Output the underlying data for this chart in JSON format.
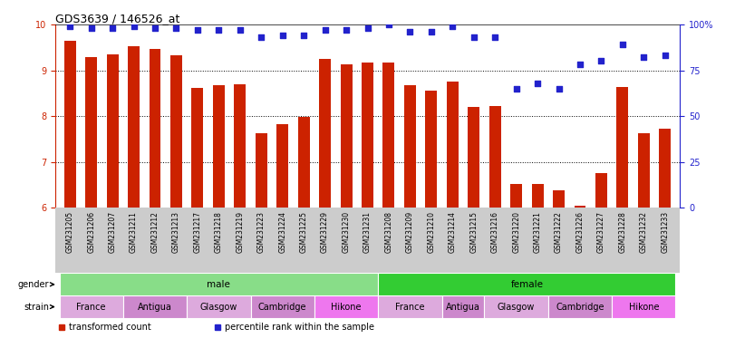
{
  "title": "GDS3639 / 146526_at",
  "samples": [
    "GSM231205",
    "GSM231206",
    "GSM231207",
    "GSM231211",
    "GSM231212",
    "GSM231213",
    "GSM231217",
    "GSM231218",
    "GSM231219",
    "GSM231223",
    "GSM231224",
    "GSM231225",
    "GSM231229",
    "GSM231230",
    "GSM231231",
    "GSM231208",
    "GSM231209",
    "GSM231210",
    "GSM231214",
    "GSM231215",
    "GSM231216",
    "GSM231220",
    "GSM231221",
    "GSM231222",
    "GSM231226",
    "GSM231227",
    "GSM231228",
    "GSM231232",
    "GSM231233"
  ],
  "bar_values": [
    9.65,
    9.28,
    9.35,
    9.52,
    9.47,
    9.32,
    8.62,
    8.67,
    8.7,
    7.63,
    7.82,
    7.98,
    9.25,
    9.13,
    9.17,
    9.17,
    8.68,
    8.55,
    8.75,
    8.2,
    8.22,
    6.52,
    6.52,
    6.38,
    6.05,
    6.75,
    8.63,
    7.62,
    7.72
  ],
  "percentile_values": [
    99,
    98,
    98,
    99,
    98,
    98,
    97,
    97,
    97,
    93,
    94,
    94,
    97,
    97,
    98,
    100,
    96,
    96,
    99,
    93,
    93,
    65,
    68,
    65,
    78,
    80,
    89,
    82,
    83
  ],
  "ylim_left": [
    6,
    10
  ],
  "ylim_right": [
    0,
    100
  ],
  "yticks_left": [
    6,
    7,
    8,
    9,
    10
  ],
  "yticks_right": [
    0,
    25,
    50,
    75,
    100
  ],
  "bar_color": "#cc2200",
  "dot_color": "#2222cc",
  "gender_groups": [
    {
      "label": "male",
      "start": 0,
      "end": 15,
      "color": "#88dd88"
    },
    {
      "label": "female",
      "start": 15,
      "end": 29,
      "color": "#33cc33"
    }
  ],
  "strain_groups_male": [
    {
      "label": "France",
      "start": 0,
      "end": 3,
      "color": "#ddaadd"
    },
    {
      "label": "Antigua",
      "start": 3,
      "end": 6,
      "color": "#cc88cc"
    },
    {
      "label": "Glasgow",
      "start": 6,
      "end": 9,
      "color": "#ddaadd"
    },
    {
      "label": "Cambridge",
      "start": 9,
      "end": 12,
      "color": "#cc88cc"
    },
    {
      "label": "Hikone",
      "start": 12,
      "end": 15,
      "color": "#ee77ee"
    }
  ],
  "strain_groups_female": [
    {
      "label": "France",
      "start": 15,
      "end": 18,
      "color": "#ddaadd"
    },
    {
      "label": "Antigua",
      "start": 18,
      "end": 20,
      "color": "#cc88cc"
    },
    {
      "label": "Glasgow",
      "start": 20,
      "end": 23,
      "color": "#ddaadd"
    },
    {
      "label": "Cambridge",
      "start": 23,
      "end": 26,
      "color": "#cc88cc"
    },
    {
      "label": "Hikone",
      "start": 26,
      "end": 29,
      "color": "#ee77ee"
    }
  ],
  "xtick_bg_color": "#cccccc",
  "legend_items": [
    {
      "label": "transformed count",
      "color": "#cc2200"
    },
    {
      "label": "percentile rank within the sample",
      "color": "#2222cc"
    }
  ]
}
